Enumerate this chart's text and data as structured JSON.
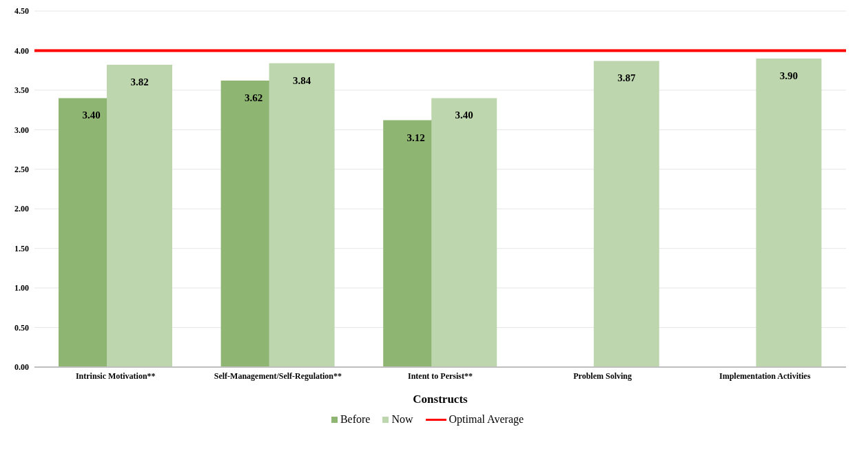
{
  "chart_data": {
    "type": "bar",
    "xlabel": "Constructs",
    "categories": [
      "Intrinsic Motivation**",
      "Self-Management/Self-Regulation**",
      "Intent to Persist**",
      "Problem Solving",
      "Implementation Activities"
    ],
    "series": [
      {
        "name": "Before",
        "color": "#8fb573",
        "values": [
          3.4,
          3.62,
          3.12,
          null,
          null
        ],
        "value_labels": [
          "3.40",
          "3.62",
          "3.12",
          null,
          null
        ]
      },
      {
        "name": "Now",
        "color": "#bdd6ad",
        "values": [
          3.82,
          3.84,
          3.4,
          3.87,
          3.9
        ],
        "value_labels": [
          "3.82",
          "3.84",
          "3.40",
          "3.87",
          "3.90"
        ]
      }
    ],
    "ylim": [
      0,
      4.5
    ],
    "yticks": [
      {
        "value": 0,
        "label": "0.00"
      },
      {
        "value": 0.5,
        "label": "0.50"
      },
      {
        "value": 1,
        "label": "1.00"
      },
      {
        "value": 1.5,
        "label": "1.50"
      },
      {
        "value": 2,
        "label": "2.00"
      },
      {
        "value": 2.5,
        "label": "2.50"
      },
      {
        "value": 3,
        "label": "3.00"
      },
      {
        "value": 3.5,
        "label": "3.50"
      },
      {
        "value": 4,
        "label": "4.00"
      },
      {
        "value": 4.5,
        "label": "4.50"
      }
    ],
    "grid": "y",
    "legend": "bottom",
    "ref_lines": [
      {
        "axis": "y",
        "value": 4,
        "label": "Optimal Average",
        "color": "#ff0000"
      }
    ]
  }
}
